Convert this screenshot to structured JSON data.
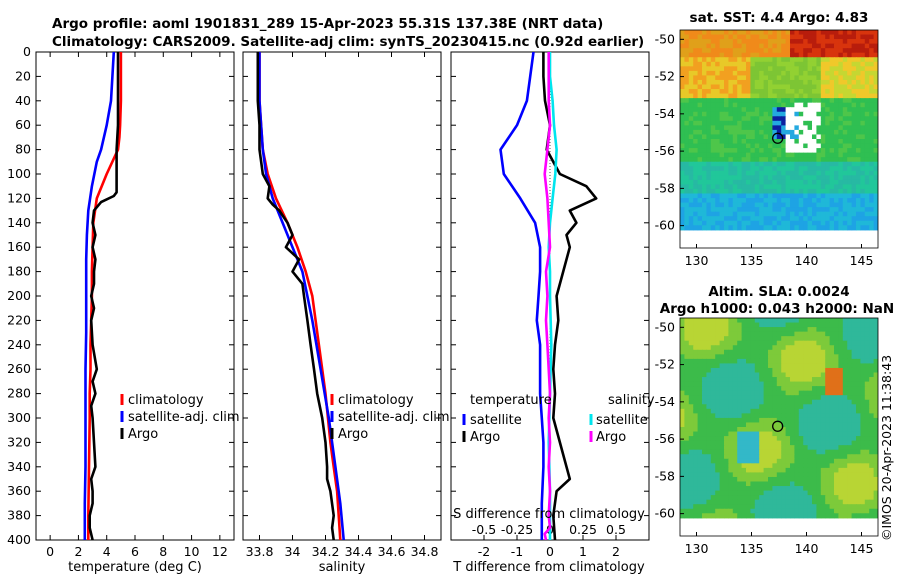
{
  "header": {
    "title_line1": "Argo profile: aoml 1901831_289 15-Apr-2023 55.31S 137.38E (NRT data)",
    "title_line2": "Climatology: CARS2009. Satellite-adj clim: synTS_20230415.nc (0.92d earlier)"
  },
  "colors": {
    "climatology": "#ff0000",
    "satellite": "#0000ff",
    "argo": "#000000",
    "salinity_satellite": "#00e5ee",
    "salinity_argo": "#ff00ff"
  },
  "chart_data": [
    {
      "id": "temperature",
      "type": "line",
      "xlabel": "temperature (deg C)",
      "ylabel": "",
      "xlim": [
        -1,
        13
      ],
      "ylim": [
        400,
        0
      ],
      "xticks": [
        "0",
        "2",
        "4",
        "6",
        "8",
        "10",
        "12"
      ],
      "yticks": [
        "0",
        "20",
        "40",
        "60",
        "80",
        "100",
        "120",
        "140",
        "160",
        "180",
        "200",
        "220",
        "240",
        "260",
        "280",
        "300",
        "320",
        "340",
        "360",
        "380",
        "400"
      ],
      "legend": {
        "position": "lower-right",
        "items": [
          "climatology",
          "satellite-adj. clim",
          "Argo"
        ]
      },
      "series": [
        {
          "name": "climatology",
          "x": [
            5.0,
            5.0,
            5.0,
            4.95,
            4.9,
            4.8,
            4.0,
            3.3,
            3.05,
            3.0,
            2.95,
            2.95,
            2.9,
            2.85,
            2.85,
            2.8,
            2.8,
            2.75,
            2.7,
            2.7
          ],
          "y": [
            0,
            20,
            40,
            60,
            70,
            80,
            100,
            120,
            140,
            160,
            180,
            200,
            220,
            240,
            260,
            280,
            300,
            340,
            380,
            400
          ]
        },
        {
          "name": "satellite-adj. clim",
          "x": [
            4.5,
            4.4,
            4.3,
            4.0,
            3.6,
            3.3,
            2.95,
            2.7,
            2.6,
            2.55,
            2.55,
            2.55,
            2.5,
            2.5,
            2.5,
            2.45,
            2.45,
            2.45
          ],
          "y": [
            0,
            20,
            40,
            60,
            80,
            90,
            110,
            130,
            150,
            170,
            200,
            230,
            260,
            300,
            340,
            370,
            390,
            400
          ]
        },
        {
          "name": "Argo",
          "x": [
            4.8,
            4.8,
            4.8,
            4.8,
            4.7,
            4.7,
            4.7,
            4.7,
            4.5,
            3.6,
            3.1,
            3.0,
            3.2,
            3.0,
            3.2,
            3.1,
            3.1,
            2.9,
            3.1,
            2.9,
            3.0,
            3.3,
            3.0,
            3.2,
            2.9,
            3.0,
            3.1,
            3.2,
            2.9,
            3.0,
            3.0,
            2.8,
            2.8,
            3.0
          ],
          "y": [
            0,
            20,
            40,
            60,
            80,
            100,
            110,
            115,
            118,
            123,
            130,
            140,
            150,
            160,
            170,
            180,
            190,
            200,
            210,
            220,
            240,
            260,
            270,
            280,
            290,
            300,
            320,
            340,
            350,
            360,
            370,
            380,
            390,
            400
          ]
        }
      ]
    },
    {
      "id": "salinity",
      "type": "line",
      "xlabel": "salinity",
      "ylabel": "",
      "xlim": [
        33.7,
        34.9
      ],
      "ylim": [
        400,
        0
      ],
      "xticks": [
        "33.8",
        "34",
        "34.2",
        "34.4",
        "34.6",
        "34.8"
      ],
      "legend": {
        "position": "lower-right",
        "items": [
          "climatology",
          "satellite-adj. clim",
          "Argo"
        ]
      },
      "series": [
        {
          "name": "climatology",
          "x": [
            33.8,
            33.8,
            33.8,
            33.81,
            33.82,
            33.85,
            33.9,
            33.97,
            34.03,
            34.08,
            34.12,
            34.16,
            34.2,
            34.23,
            34.25,
            34.27,
            34.28,
            34.29
          ],
          "y": [
            0,
            20,
            40,
            60,
            80,
            100,
            120,
            140,
            160,
            180,
            200,
            240,
            280,
            320,
            340,
            360,
            380,
            400
          ]
        },
        {
          "name": "satellite-adj. clim",
          "x": [
            33.8,
            33.8,
            33.8,
            33.81,
            33.82,
            33.84,
            33.88,
            33.94,
            34.0,
            34.06,
            34.12,
            34.17,
            34.22,
            34.26,
            34.29,
            34.31
          ],
          "y": [
            0,
            20,
            40,
            60,
            80,
            100,
            120,
            140,
            160,
            180,
            220,
            260,
            300,
            340,
            370,
            400
          ]
        },
        {
          "name": "Argo",
          "x": [
            33.79,
            33.79,
            33.79,
            33.8,
            33.8,
            33.82,
            33.86,
            33.85,
            33.88,
            33.92,
            33.97,
            34.0,
            33.96,
            34.04,
            34.0,
            34.06,
            34.07,
            34.09,
            34.11,
            34.13,
            34.15,
            34.18,
            34.2,
            34.21,
            34.21,
            34.23,
            34.25,
            34.24,
            34.25
          ],
          "y": [
            0,
            20,
            40,
            60,
            80,
            100,
            110,
            120,
            125,
            130,
            140,
            150,
            160,
            170,
            180,
            190,
            200,
            220,
            240,
            260,
            280,
            300,
            320,
            340,
            350,
            360,
            380,
            390,
            400
          ]
        }
      ]
    },
    {
      "id": "difference",
      "type": "line",
      "xlabel": "T difference from climatology",
      "x2label": "S difference from climatology",
      "xlim": [
        -3,
        3
      ],
      "x2lim": [
        -0.75,
        0.75
      ],
      "ylim": [
        400,
        0
      ],
      "xticks": [
        "-2",
        "-1",
        "0",
        "1",
        "2"
      ],
      "x2ticks": [
        "-0.5",
        "-0.25",
        "0",
        "0.25",
        "0.5"
      ],
      "legend_temperature": {
        "title": "temperature",
        "items": [
          "satellite",
          "Argo"
        ]
      },
      "legend_salinity": {
        "title": "salinity",
        "items": [
          "satellite",
          "Argo"
        ]
      },
      "series": [
        {
          "name": "temperature satellite",
          "x": [
            -0.5,
            -0.6,
            -0.7,
            -1.0,
            -1.5,
            -1.4,
            -0.9,
            -0.45,
            -0.3,
            -0.3,
            -0.35,
            -0.4,
            -0.3,
            -0.3,
            -0.3,
            -0.25,
            -0.2,
            -0.2,
            -0.25,
            -0.25
          ],
          "y": [
            0,
            20,
            40,
            60,
            80,
            100,
            120,
            140,
            160,
            180,
            200,
            220,
            240,
            260,
            280,
            300,
            320,
            340,
            370,
            400
          ]
        },
        {
          "name": "temperature Argo",
          "x": [
            -0.2,
            -0.2,
            -0.15,
            0.0,
            -0.1,
            0.3,
            1.1,
            1.4,
            0.6,
            0.8,
            0.5,
            0.6,
            0.4,
            0.2,
            0.25,
            0.15,
            0.1,
            0.15,
            0.1,
            0.4,
            0.5,
            0.6,
            0.2,
            0.1,
            0.15
          ],
          "y": [
            0,
            20,
            40,
            60,
            80,
            100,
            110,
            120,
            130,
            140,
            150,
            160,
            180,
            200,
            220,
            240,
            260,
            280,
            300,
            330,
            340,
            350,
            360,
            380,
            400
          ]
        },
        {
          "name": "salinity satellite",
          "x": [
            0.0,
            0.0,
            0.02,
            0.03,
            0.05,
            0.04,
            0.02,
            0.0,
            -0.01,
            0.0,
            0.0,
            0.01,
            0.0,
            -0.01,
            0.0,
            0.0
          ],
          "y": [
            0,
            20,
            40,
            60,
            80,
            100,
            120,
            140,
            160,
            180,
            200,
            240,
            280,
            320,
            360,
            400
          ]
        },
        {
          "name": "salinity Argo",
          "x": [
            -0.01,
            -0.01,
            -0.01,
            0.0,
            -0.02,
            -0.04,
            -0.02,
            -0.01,
            0.0,
            -0.03,
            -0.02,
            -0.03,
            -0.02,
            -0.01,
            0.0,
            -0.01,
            0.0,
            -0.01,
            0.0,
            -0.01,
            0.0,
            -0.04,
            -0.03
          ],
          "y": [
            0,
            20,
            40,
            60,
            80,
            100,
            120,
            140,
            160,
            180,
            200,
            220,
            240,
            260,
            280,
            300,
            320,
            340,
            360,
            380,
            390,
            395,
            400
          ]
        }
      ]
    },
    {
      "id": "sst_map",
      "type": "heatmap",
      "title": "sat. SST: 4.4 Argo: 4.83",
      "xlim": [
        128.5,
        146.5
      ],
      "ylim": [
        -61.2,
        -49.5
      ],
      "xticks": [
        "130",
        "135",
        "140",
        "145"
      ],
      "yticks": [
        "-50",
        "-52",
        "-54",
        "-56",
        "-58",
        "-60"
      ],
      "marker": {
        "lon": 137.38,
        "lat": -55.31
      }
    },
    {
      "id": "sla_map",
      "type": "heatmap",
      "title": "Altim. SLA: 0.0024",
      "subtitle": "Argo h1000: 0.043 h2000: NaN",
      "xlim": [
        128.5,
        146.5
      ],
      "ylim": [
        -61.2,
        -49.5
      ],
      "xticks": [
        "130",
        "135",
        "140",
        "145"
      ],
      "yticks": [
        "-50",
        "-52",
        "-54",
        "-56",
        "-58",
        "-60"
      ],
      "marker": {
        "lon": 137.38,
        "lat": -55.31
      }
    }
  ],
  "footer": {
    "credit": "©IMOS 20-Apr-2023 11:38:43"
  }
}
